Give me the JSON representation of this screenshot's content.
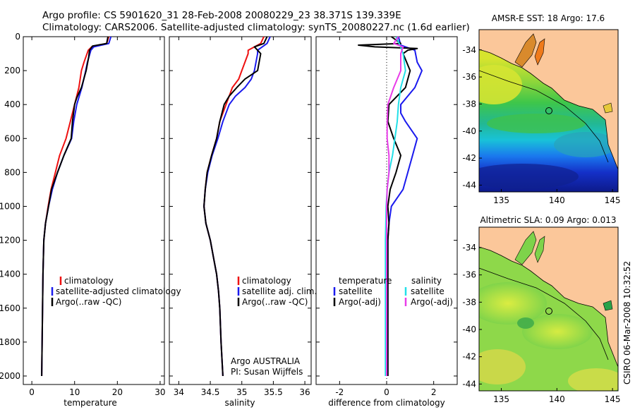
{
  "header": {
    "title_line1": "Argo profile: CS 5901620_31 28-Feb-2008 20080229_23 38.371S 139.339E",
    "title_line2": "Climatology: CARS2006. Satellite-adjusted climatology: synTS_20080227.nc (1.6d earlier)"
  },
  "stamp": "CSIRO 06-Mar-2008 10:32:52",
  "colors": {
    "climatology": "#ee1111",
    "satellite": "#1a1aee",
    "argo": "#000000",
    "sal_satellite": "#22e0e8",
    "sal_argo": "#e83ce8",
    "land": "#fbc79a"
  },
  "chart_data": [
    {
      "type": "line",
      "name": "temperature-profile",
      "xlabel": "temperature",
      "xlim": [
        -2,
        31
      ],
      "ylim": [
        2050,
        0
      ],
      "xticks": [
        0,
        10,
        20,
        30
      ],
      "yticks": [
        0,
        200,
        400,
        600,
        800,
        1000,
        1200,
        1400,
        1600,
        1800,
        2000
      ],
      "legend": [
        "climatology",
        "satellite-adjusted climatology",
        "Argo(..raw -QC)"
      ],
      "series": [
        {
          "name": "climatology",
          "color": "#ee1111",
          "points": [
            [
              18,
              0
            ],
            [
              17.5,
              40
            ],
            [
              14,
              60
            ],
            [
              13.2,
              80
            ],
            [
              12.2,
              150
            ],
            [
              11.6,
              200
            ],
            [
              11,
              300
            ],
            [
              10,
              400
            ],
            [
              9,
              500
            ],
            [
              8,
              600
            ],
            [
              6.5,
              700
            ],
            [
              5.5,
              800
            ],
            [
              4.5,
              900
            ],
            [
              3.8,
              1000
            ],
            [
              3.2,
              1100
            ],
            [
              2.8,
              1200
            ],
            [
              2.6,
              1400
            ],
            [
              2.5,
              1600
            ],
            [
              2.4,
              1800
            ],
            [
              2.3,
              2000
            ]
          ]
        },
        {
          "name": "satellite-adjusted climatology",
          "color": "#1a1aee",
          "points": [
            [
              18.5,
              0
            ],
            [
              18,
              40
            ],
            [
              14.5,
              60
            ],
            [
              13.8,
              80
            ],
            [
              13,
              150
            ],
            [
              12.6,
              200
            ],
            [
              11.7,
              300
            ],
            [
              10.5,
              400
            ],
            [
              9.8,
              500
            ],
            [
              9.3,
              600
            ],
            [
              7.5,
              700
            ],
            [
              6,
              800
            ],
            [
              4.8,
              900
            ],
            [
              3.9,
              1000
            ],
            [
              3.2,
              1100
            ],
            [
              2.8,
              1200
            ],
            [
              2.6,
              1400
            ],
            [
              2.5,
              1600
            ],
            [
              2.4,
              1800
            ],
            [
              2.3,
              2000
            ]
          ]
        },
        {
          "name": "Argo(..raw -QC)",
          "color": "#000000",
          "points": [
            [
              17.8,
              0
            ],
            [
              17.5,
              40
            ],
            [
              14.2,
              55
            ],
            [
              13.5,
              80
            ],
            [
              13.3,
              120
            ],
            [
              12.7,
              200
            ],
            [
              11.6,
              300
            ],
            [
              10.5,
              360
            ],
            [
              10,
              400
            ],
            [
              9.5,
              500
            ],
            [
              9.2,
              600
            ],
            [
              7.5,
              700
            ],
            [
              6,
              800
            ],
            [
              4.6,
              900
            ],
            [
              3.9,
              1000
            ],
            [
              3.2,
              1100
            ],
            [
              2.8,
              1200
            ],
            [
              2.6,
              1400
            ],
            [
              2.5,
              1600
            ],
            [
              2.4,
              1800
            ],
            [
              2.3,
              2000
            ]
          ]
        }
      ]
    },
    {
      "type": "line",
      "name": "salinity-profile",
      "xlabel": "salinity",
      "xlim": [
        33.85,
        36.1
      ],
      "ylim": [
        2050,
        0
      ],
      "xticks": [
        34,
        34.5,
        35,
        35.5,
        36
      ],
      "xticklabels": [
        "34",
        "34.5",
        "35",
        "35.5",
        "36"
      ],
      "legend": [
        "climatology",
        "satellite adj. clim.",
        "Argo(..raw -QC)"
      ],
      "annotation": [
        "Argo AUSTRALIA",
        "PI: Susan Wijffels"
      ],
      "series": [
        {
          "name": "climatology",
          "color": "#ee1111",
          "points": [
            [
              35.35,
              0
            ],
            [
              35.3,
              40
            ],
            [
              35.1,
              80
            ],
            [
              35.1,
              100
            ],
            [
              35.0,
              200
            ],
            [
              34.95,
              250
            ],
            [
              34.85,
              300
            ],
            [
              34.75,
              400
            ],
            [
              34.65,
              500
            ],
            [
              34.6,
              600
            ],
            [
              34.52,
              700
            ],
            [
              34.45,
              800
            ],
            [
              34.42,
              900
            ],
            [
              34.4,
              1000
            ],
            [
              34.43,
              1100
            ],
            [
              34.5,
              1200
            ],
            [
              34.55,
              1300
            ],
            [
              34.6,
              1400
            ],
            [
              34.63,
              1500
            ],
            [
              34.65,
              1600
            ],
            [
              34.67,
              1800
            ],
            [
              34.7,
              2000
            ]
          ]
        },
        {
          "name": "satellite adj. clim.",
          "color": "#1a1aee",
          "points": [
            [
              35.45,
              0
            ],
            [
              35.4,
              40
            ],
            [
              35.25,
              80
            ],
            [
              35.25,
              100
            ],
            [
              35.2,
              200
            ],
            [
              35.15,
              250
            ],
            [
              35.05,
              300
            ],
            [
              34.9,
              350
            ],
            [
              34.8,
              400
            ],
            [
              34.7,
              500
            ],
            [
              34.62,
              600
            ],
            [
              34.53,
              700
            ],
            [
              34.46,
              800
            ],
            [
              34.42,
              900
            ],
            [
              34.4,
              1000
            ],
            [
              34.43,
              1100
            ],
            [
              34.5,
              1200
            ],
            [
              34.55,
              1300
            ],
            [
              34.6,
              1400
            ],
            [
              34.63,
              1500
            ],
            [
              34.65,
              1600
            ],
            [
              34.67,
              1800
            ],
            [
              34.7,
              2000
            ]
          ]
        },
        {
          "name": "Argo(..raw -QC)",
          "color": "#000000",
          "points": [
            [
              35.4,
              0
            ],
            [
              35.35,
              40
            ],
            [
              35.2,
              60
            ],
            [
              35.25,
              80
            ],
            [
              35.3,
              100
            ],
            [
              35.25,
              200
            ],
            [
              35.05,
              250
            ],
            [
              34.92,
              300
            ],
            [
              34.8,
              350
            ],
            [
              34.72,
              400
            ],
            [
              34.65,
              500
            ],
            [
              34.6,
              600
            ],
            [
              34.52,
              700
            ],
            [
              34.45,
              800
            ],
            [
              34.42,
              900
            ],
            [
              34.4,
              1000
            ],
            [
              34.43,
              1100
            ],
            [
              34.5,
              1200
            ],
            [
              34.55,
              1300
            ],
            [
              34.6,
              1400
            ],
            [
              34.63,
              1500
            ],
            [
              34.65,
              1600
            ],
            [
              34.67,
              1800
            ],
            [
              34.7,
              2000
            ]
          ]
        }
      ]
    },
    {
      "type": "line",
      "name": "difference-profile",
      "xlabel": "difference from climatology",
      "xlim": [
        -3,
        3
      ],
      "ylim": [
        2050,
        0
      ],
      "xticks": [
        -2,
        0,
        2
      ],
      "legend_temperature": [
        "temperature",
        "satellite",
        "Argo(-adj)"
      ],
      "legend_salinity": [
        "salinity",
        "satellite",
        "Argo(-adj)"
      ],
      "series": [
        {
          "name": "temperature satellite",
          "color": "#1a1aee",
          "points": [
            [
              0.5,
              0
            ],
            [
              0.6,
              50
            ],
            [
              0.8,
              60
            ],
            [
              1.2,
              80
            ],
            [
              1.3,
              150
            ],
            [
              1.5,
              200
            ],
            [
              1.2,
              300
            ],
            [
              0.6,
              400
            ],
            [
              0.6,
              450
            ],
            [
              0.8,
              500
            ],
            [
              1.3,
              600
            ],
            [
              1.1,
              700
            ],
            [
              0.9,
              800
            ],
            [
              0.7,
              900
            ],
            [
              0.2,
              1000
            ],
            [
              0.1,
              1100
            ],
            [
              0.05,
              1200
            ],
            [
              0.05,
              1400
            ],
            [
              0.05,
              1600
            ],
            [
              0.05,
              1800
            ],
            [
              0.05,
              2000
            ]
          ]
        },
        {
          "name": "temperature Argo(-adj)",
          "color": "#000000",
          "points": [
            [
              0.2,
              0
            ],
            [
              0.6,
              40
            ],
            [
              -1.2,
              50
            ],
            [
              -0.5,
              60
            ],
            [
              1.3,
              70
            ],
            [
              0.9,
              80
            ],
            [
              0.7,
              100
            ],
            [
              1.0,
              200
            ],
            [
              0.8,
              300
            ],
            [
              0.1,
              400
            ],
            [
              0.05,
              500
            ],
            [
              0.3,
              600
            ],
            [
              0.6,
              700
            ],
            [
              0.4,
              800
            ],
            [
              0.15,
              900
            ],
            [
              0.05,
              1000
            ],
            [
              0.1,
              1100
            ],
            [
              0.05,
              1200
            ],
            [
              0.05,
              1400
            ],
            [
              0.05,
              1600
            ],
            [
              0.05,
              1800
            ],
            [
              0.05,
              2000
            ]
          ]
        },
        {
          "name": "salinity satellite",
          "color": "#22e0e8",
          "points": [
            [
              0.4,
              0
            ],
            [
              0.6,
              60
            ],
            [
              0.7,
              100
            ],
            [
              0.8,
              200
            ],
            [
              0.7,
              250
            ],
            [
              0.6,
              300
            ],
            [
              0.5,
              400
            ],
            [
              0.45,
              500
            ],
            [
              0.35,
              600
            ],
            [
              0.25,
              700
            ],
            [
              0.1,
              800
            ],
            [
              0.02,
              900
            ],
            [
              -0.02,
              1000
            ],
            [
              -0.05,
              1200
            ],
            [
              -0.05,
              1400
            ],
            [
              -0.05,
              1600
            ],
            [
              -0.05,
              1800
            ],
            [
              -0.05,
              2000
            ]
          ]
        },
        {
          "name": "salinity Argo(-adj)",
          "color": "#e83ce8",
          "points": [
            [
              0.5,
              0
            ],
            [
              0.3,
              40
            ],
            [
              0.7,
              60
            ],
            [
              0.6,
              100
            ],
            [
              0.6,
              200
            ],
            [
              0.3,
              300
            ],
            [
              0.05,
              400
            ],
            [
              0.02,
              500
            ],
            [
              0.02,
              600
            ],
            [
              0.1,
              700
            ],
            [
              0.1,
              800
            ],
            [
              0.02,
              900
            ],
            [
              0,
              1000
            ],
            [
              0,
              1200
            ],
            [
              0,
              1400
            ],
            [
              0,
              1600
            ],
            [
              0,
              1800
            ],
            [
              0,
              2000
            ]
          ]
        }
      ]
    },
    {
      "type": "heatmap",
      "name": "sst-map",
      "title": "AMSR-E SST: 18 Argo: 17.6",
      "xlim": [
        133,
        145.5
      ],
      "ylim": [
        -44.5,
        -32.5
      ],
      "xticks": [
        135,
        140,
        145
      ],
      "yticks": [
        -34,
        -36,
        -38,
        -40,
        -42,
        -44
      ],
      "argo_position": [
        139.339,
        -38.371
      ]
    },
    {
      "type": "heatmap",
      "name": "sla-map",
      "title": "Altimetric SLA: 0.09 Argo: 0.013",
      "xlim": [
        133,
        145.5
      ],
      "ylim": [
        -44.5,
        -32.5
      ],
      "xticks": [
        135,
        140,
        145
      ],
      "yticks": [
        -34,
        -36,
        -38,
        -40,
        -42,
        -44
      ],
      "argo_position": [
        139.339,
        -38.371
      ]
    }
  ]
}
